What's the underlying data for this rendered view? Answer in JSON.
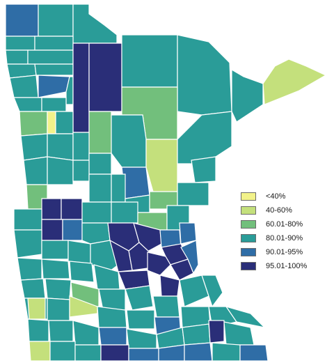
{
  "legend": {
    "items": [
      {
        "label": "<40%",
        "color": "#f2f28a"
      },
      {
        "label": "40-60%",
        "color": "#c4e07c"
      },
      {
        "label": "60.01-80%",
        "color": "#72bf7c"
      },
      {
        "label": "80.01-90%",
        "color": "#2a9c98"
      },
      {
        "label": "90.01-95%",
        "color": "#2f6da6"
      },
      {
        "label": "95.01-100%",
        "color": "#2a2e78"
      }
    ]
  },
  "map": {
    "outline_color": "#ffffff"
  }
}
